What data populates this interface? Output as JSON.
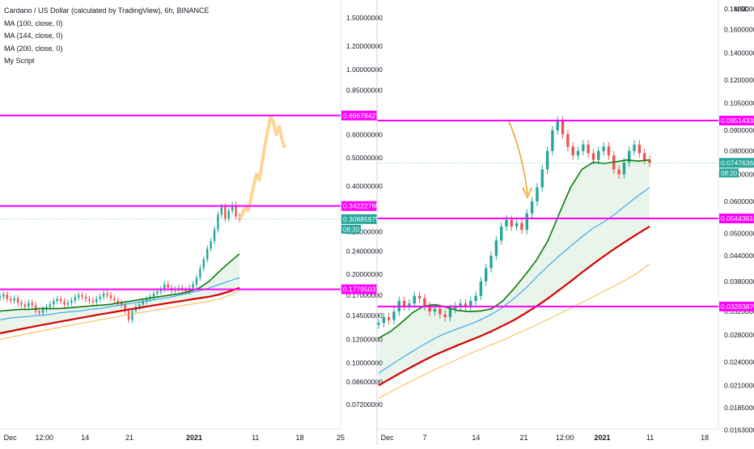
{
  "legend": {
    "title": "Cardano / US Dollar (calculated by TradingView), 6h, BINANCE",
    "ma1": "MA (100, close, 0)",
    "ma2": "MA (144, close, 0)",
    "ma3": "MA (200, close, 0)",
    "script": "My Script"
  },
  "colors": {
    "candle_up": "#26a69a",
    "candle_down": "#ef5350",
    "ma100": "#0a7a0a",
    "ma144": "#2196f3",
    "ma200": "#d50000",
    "extra_ma": "#f9b94a",
    "level_line": "#ff00ff",
    "projection": "#ffcc80",
    "arrow": "#f0a020",
    "price_tag": "#26a69a"
  },
  "chart_data": [
    {
      "type": "line",
      "title": "Cardano / US Dollar (calculated by TradingView), 6h, BINANCE",
      "scale": "log",
      "ylim": [
        0.068,
        1.62
      ],
      "y_ticks": [
        "1.50000000",
        "1.20000000",
        "1.00000000",
        "0.85000000",
        "0.60000000",
        "0.50000000",
        "0.40000000",
        "0.28000000",
        "0.24000000",
        "0.20000000",
        "0.17000000",
        "0.14500000",
        "0.12000000",
        "0.10000000",
        "0.08600000",
        "0.07200000"
      ],
      "y_tick_values": [
        1.5,
        1.2,
        1.0,
        0.85,
        0.6,
        0.5,
        0.4,
        0.28,
        0.24,
        0.2,
        0.17,
        0.145,
        0.12,
        0.1,
        0.086,
        0.072
      ],
      "x_ticks": [
        "Dec",
        "12:00",
        "14",
        "21",
        "2021",
        "11",
        "18",
        "25"
      ],
      "x_tick_positions": [
        0.03,
        0.13,
        0.25,
        0.38,
        0.57,
        0.75,
        0.88,
        1.0
      ],
      "horizontal_levels": [
        {
          "label": "0.69678427",
          "value": 0.69678427
        },
        {
          "label": "0.34222785",
          "value": 0.34222785
        },
        {
          "label": "0.17795031",
          "value": 0.17795031
        }
      ],
      "last_price": {
        "label": "0.30885979",
        "value": 0.30885979
      },
      "countdown": "08:20",
      "price_series": [
        0.168,
        0.171,
        0.165,
        0.163,
        0.166,
        0.16,
        0.158,
        0.155,
        0.16,
        0.157,
        0.15,
        0.148,
        0.152,
        0.155,
        0.158,
        0.162,
        0.165,
        0.162,
        0.158,
        0.16,
        0.163,
        0.167,
        0.17,
        0.168,
        0.165,
        0.163,
        0.161,
        0.165,
        0.168,
        0.172,
        0.17,
        0.166,
        0.163,
        0.16,
        0.158,
        0.15,
        0.14,
        0.15,
        0.155,
        0.158,
        0.162,
        0.165,
        0.168,
        0.172,
        0.175,
        0.178,
        0.185,
        0.18,
        0.176,
        0.178,
        0.18,
        0.177,
        0.175,
        0.18,
        0.185,
        0.195,
        0.21,
        0.225,
        0.245,
        0.26,
        0.285,
        0.32,
        0.34,
        0.31,
        0.33,
        0.345,
        0.315,
        0.309
      ],
      "projection_series": [
        0.309,
        0.32,
        0.34,
        0.33,
        0.36,
        0.4,
        0.44,
        0.42,
        0.48,
        0.55,
        0.62,
        0.69,
        0.66,
        0.6,
        0.64,
        0.58,
        0.54
      ],
      "series": [
        {
          "name": "MA (100, close, 0)",
          "values": [
            0.15,
            0.151,
            0.152,
            0.152,
            0.153,
            0.153,
            0.153,
            0.154,
            0.155,
            0.156,
            0.157,
            0.158,
            0.16,
            0.162,
            0.164,
            0.166,
            0.168,
            0.17,
            0.172,
            0.175,
            0.18,
            0.19,
            0.205,
            0.22,
            0.235
          ]
        },
        {
          "name": "MA (144, close, 0)",
          "values": [
            0.14,
            0.142,
            0.143,
            0.144,
            0.145,
            0.146,
            0.148,
            0.149,
            0.15,
            0.152,
            0.153,
            0.155,
            0.157,
            0.159,
            0.161,
            0.163,
            0.165,
            0.167,
            0.17,
            0.173,
            0.176,
            0.18,
            0.185,
            0.19,
            0.195
          ]
        },
        {
          "name": "MA (200, close, 0)",
          "values": [
            0.126,
            0.128,
            0.13,
            0.132,
            0.134,
            0.136,
            0.138,
            0.14,
            0.142,
            0.144,
            0.146,
            0.148,
            0.15,
            0.152,
            0.154,
            0.156,
            0.158,
            0.16,
            0.162,
            0.164,
            0.166,
            0.168,
            0.171,
            0.175,
            0.18
          ]
        },
        {
          "name": "",
          "values": [
            0.12,
            0.122,
            0.124,
            0.126,
            0.128,
            0.13,
            0.132,
            0.134,
            0.136,
            0.138,
            0.14,
            0.142,
            0.144,
            0.146,
            0.148,
            0.15,
            0.152,
            0.154,
            0.156,
            0.158,
            0.16,
            0.162,
            0.165,
            0.17,
            0.176
          ]
        }
      ]
    },
    {
      "type": "line",
      "scale": "log",
      "ylim": [
        0.0158,
        0.185
      ],
      "y_unit": "USD",
      "y_ticks": [
        "0.18000000",
        "0.16000000",
        "0.14000000",
        "0.12000000",
        "0.10500000",
        "0.09000000",
        "0.08000000",
        "0.07000000",
        "0.06000000",
        "0.05000000",
        "0.04400000",
        "0.03800000",
        "0.03200000",
        "0.02800000",
        "0.02400000",
        "0.02100000",
        "0.01850000",
        "0.01630000"
      ],
      "y_tick_values": [
        0.18,
        0.16,
        0.14,
        0.12,
        0.105,
        0.09,
        0.08,
        0.07,
        0.06,
        0.05,
        0.044,
        0.038,
        0.032,
        0.028,
        0.024,
        0.021,
        0.0185,
        0.0163
      ],
      "x_ticks": [
        "Dec",
        "7",
        "14",
        "21",
        "12:00",
        "2021",
        "11",
        "18"
      ],
      "x_tick_positions": [
        0.03,
        0.14,
        0.29,
        0.43,
        0.55,
        0.66,
        0.8,
        0.96
      ],
      "horizontal_levels": [
        {
          "label": "0.09514333",
          "value": 0.09514333
        },
        {
          "label": "0.05443618",
          "value": 0.05443618
        },
        {
          "label": "0.03293876",
          "value": 0.03293876
        }
      ],
      "last_price": {
        "label": "0.07476368",
        "value": 0.07476368
      },
      "countdown": "08:20",
      "price_series": [
        0.03,
        0.031,
        0.0305,
        0.032,
        0.034,
        0.033,
        0.0335,
        0.035,
        0.0345,
        0.033,
        0.032,
        0.0325,
        0.0315,
        0.031,
        0.0325,
        0.033,
        0.0335,
        0.033,
        0.034,
        0.035,
        0.038,
        0.041,
        0.044,
        0.048,
        0.052,
        0.054,
        0.052,
        0.053,
        0.051,
        0.056,
        0.06,
        0.065,
        0.072,
        0.08,
        0.09,
        0.095,
        0.088,
        0.082,
        0.078,
        0.08,
        0.083,
        0.079,
        0.076,
        0.08,
        0.082,
        0.078,
        0.072,
        0.07,
        0.075,
        0.08,
        0.083,
        0.079,
        0.076,
        0.0748
      ],
      "series": [
        {
          "name": "MA (100, close, 0)",
          "values": [
            0.0275,
            0.0285,
            0.03,
            0.0318,
            0.033,
            0.0333,
            0.0328,
            0.0322,
            0.032,
            0.0321,
            0.0325,
            0.034,
            0.0365,
            0.0395,
            0.043,
            0.048,
            0.056,
            0.065,
            0.072,
            0.075,
            0.0745,
            0.0752,
            0.076,
            0.0755,
            0.076
          ]
        },
        {
          "name": "MA (144, close, 0)",
          "values": [
            0.0225,
            0.0235,
            0.0245,
            0.0255,
            0.0265,
            0.0275,
            0.0283,
            0.029,
            0.0297,
            0.0305,
            0.0315,
            0.0328,
            0.0345,
            0.0365,
            0.039,
            0.0415,
            0.044,
            0.0465,
            0.049,
            0.0515,
            0.0535,
            0.056,
            0.059,
            0.062,
            0.065
          ]
        },
        {
          "name": "MA (200, close, 0)",
          "values": [
            0.021,
            0.0218,
            0.0226,
            0.0234,
            0.0242,
            0.025,
            0.0257,
            0.0264,
            0.0271,
            0.0278,
            0.0286,
            0.0295,
            0.0305,
            0.0317,
            0.033,
            0.0345,
            0.0362,
            0.038,
            0.04,
            0.042,
            0.044,
            0.046,
            0.048,
            0.05,
            0.052
          ]
        },
        {
          "name": "",
          "values": [
            0.0195,
            0.0202,
            0.0209,
            0.0216,
            0.0223,
            0.023,
            0.0237,
            0.0244,
            0.0251,
            0.0258,
            0.0265,
            0.0272,
            0.028,
            0.0288,
            0.0297,
            0.0306,
            0.0316,
            0.0326,
            0.0337,
            0.0348,
            0.036,
            0.0372,
            0.0385,
            0.04,
            0.042
          ]
        }
      ]
    }
  ]
}
